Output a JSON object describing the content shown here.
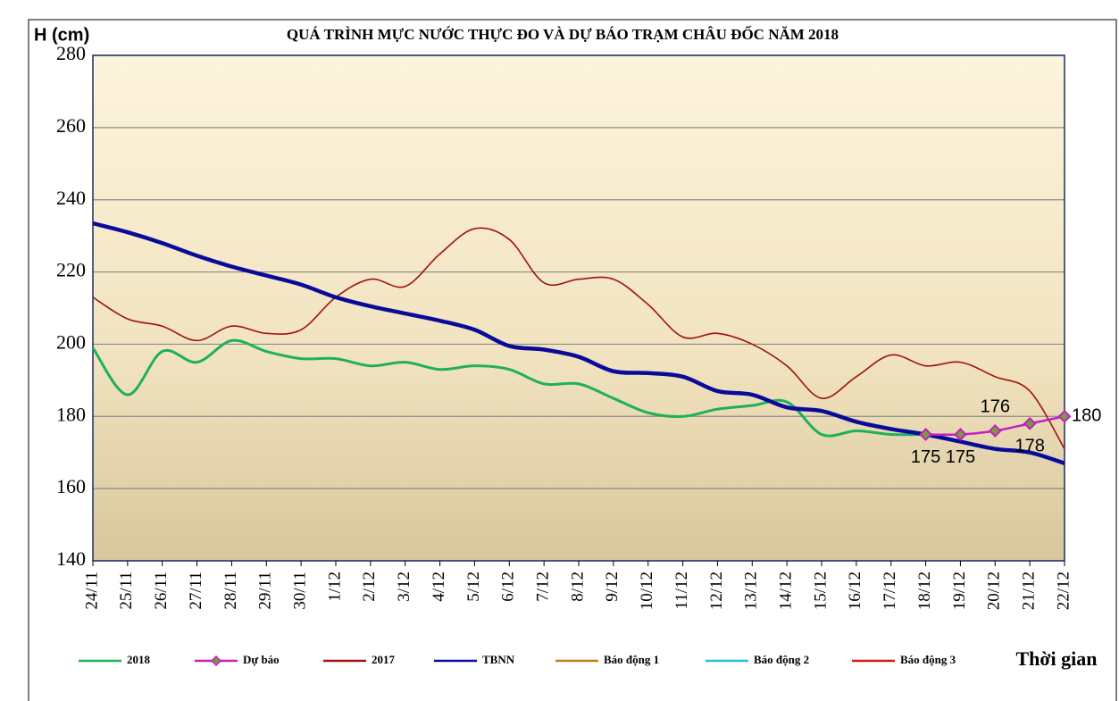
{
  "chart_data": {
    "type": "line",
    "title": "QUÁ TRÌNH MỰC NƯỚC THỰC ĐO VÀ DỰ BÁO TRẠM CHÂU ĐỐC NĂM 2018",
    "y_label": "H (cm)",
    "x_label": "Thời gian",
    "categories": [
      "24/11",
      "25/11",
      "26/11",
      "27/11",
      "28/11",
      "29/11",
      "30/11",
      "1/12",
      "2/12",
      "3/12",
      "4/12",
      "5/12",
      "6/12",
      "7/12",
      "8/12",
      "9/12",
      "10/12",
      "11/12",
      "12/12",
      "13/12",
      "14/12",
      "15/12",
      "16/12",
      "17/12",
      "18/12",
      "19/12",
      "20/12",
      "21/12",
      "22/12"
    ],
    "ylim": [
      140,
      280
    ],
    "yticks": [
      140,
      160,
      180,
      200,
      220,
      240,
      260,
      280
    ],
    "grid": true,
    "series": [
      {
        "name": "2018",
        "color": "#1fb05a",
        "values": [
          199,
          186,
          198,
          195,
          201,
          198,
          196,
          196,
          194,
          195,
          193,
          194,
          193,
          189,
          189,
          185,
          181,
          180,
          182,
          183,
          184,
          175,
          176,
          175,
          175,
          null,
          null,
          null,
          null
        ]
      },
      {
        "name": "Dự báo",
        "color": "#c41fc4",
        "marker": "diamond",
        "values": [
          null,
          null,
          null,
          null,
          null,
          null,
          null,
          null,
          null,
          null,
          null,
          null,
          null,
          null,
          null,
          null,
          null,
          null,
          null,
          null,
          null,
          null,
          null,
          null,
          175,
          175,
          176,
          178,
          180
        ]
      },
      {
        "name": "2017",
        "color": "#a01010",
        "values": [
          213,
          207,
          205,
          201,
          205,
          203,
          204,
          213,
          218,
          216,
          225,
          232,
          229,
          217,
          218,
          218,
          211,
          202,
          203,
          200,
          194,
          185,
          191,
          197,
          194,
          195,
          191,
          187,
          171
        ]
      },
      {
        "name": "TBNN",
        "color": "#0a0a9a",
        "values": [
          233.5,
          231,
          228,
          224.5,
          221.5,
          219,
          216.5,
          213,
          210.5,
          208.5,
          206.5,
          204,
          199.5,
          198.5,
          196.5,
          192.5,
          192,
          191,
          187,
          186,
          182.5,
          181.5,
          178.5,
          176.5,
          175,
          173,
          171,
          170,
          167
        ]
      },
      {
        "name": "Báo động 1",
        "color": "#c87a1a",
        "values": [
          null,
          null,
          null,
          null,
          null,
          null,
          null,
          null,
          null,
          null,
          null,
          null,
          null,
          null,
          null,
          null,
          null,
          null,
          null,
          null,
          null,
          null,
          null,
          null,
          null,
          null,
          null,
          null,
          null
        ]
      },
      {
        "name": "Báo động 2",
        "color": "#20c0d8",
        "values": [
          null,
          null,
          null,
          null,
          null,
          null,
          null,
          null,
          null,
          null,
          null,
          null,
          null,
          null,
          null,
          null,
          null,
          null,
          null,
          null,
          null,
          null,
          null,
          null,
          null,
          null,
          null,
          null,
          null
        ]
      },
      {
        "name": "Báo động 3",
        "color": "#d01818",
        "values": [
          null,
          null,
          null,
          null,
          null,
          null,
          null,
          null,
          null,
          null,
          null,
          null,
          null,
          null,
          null,
          null,
          null,
          null,
          null,
          null,
          null,
          null,
          null,
          null,
          null,
          null,
          null,
          null,
          null
        ]
      }
    ]
  }
}
